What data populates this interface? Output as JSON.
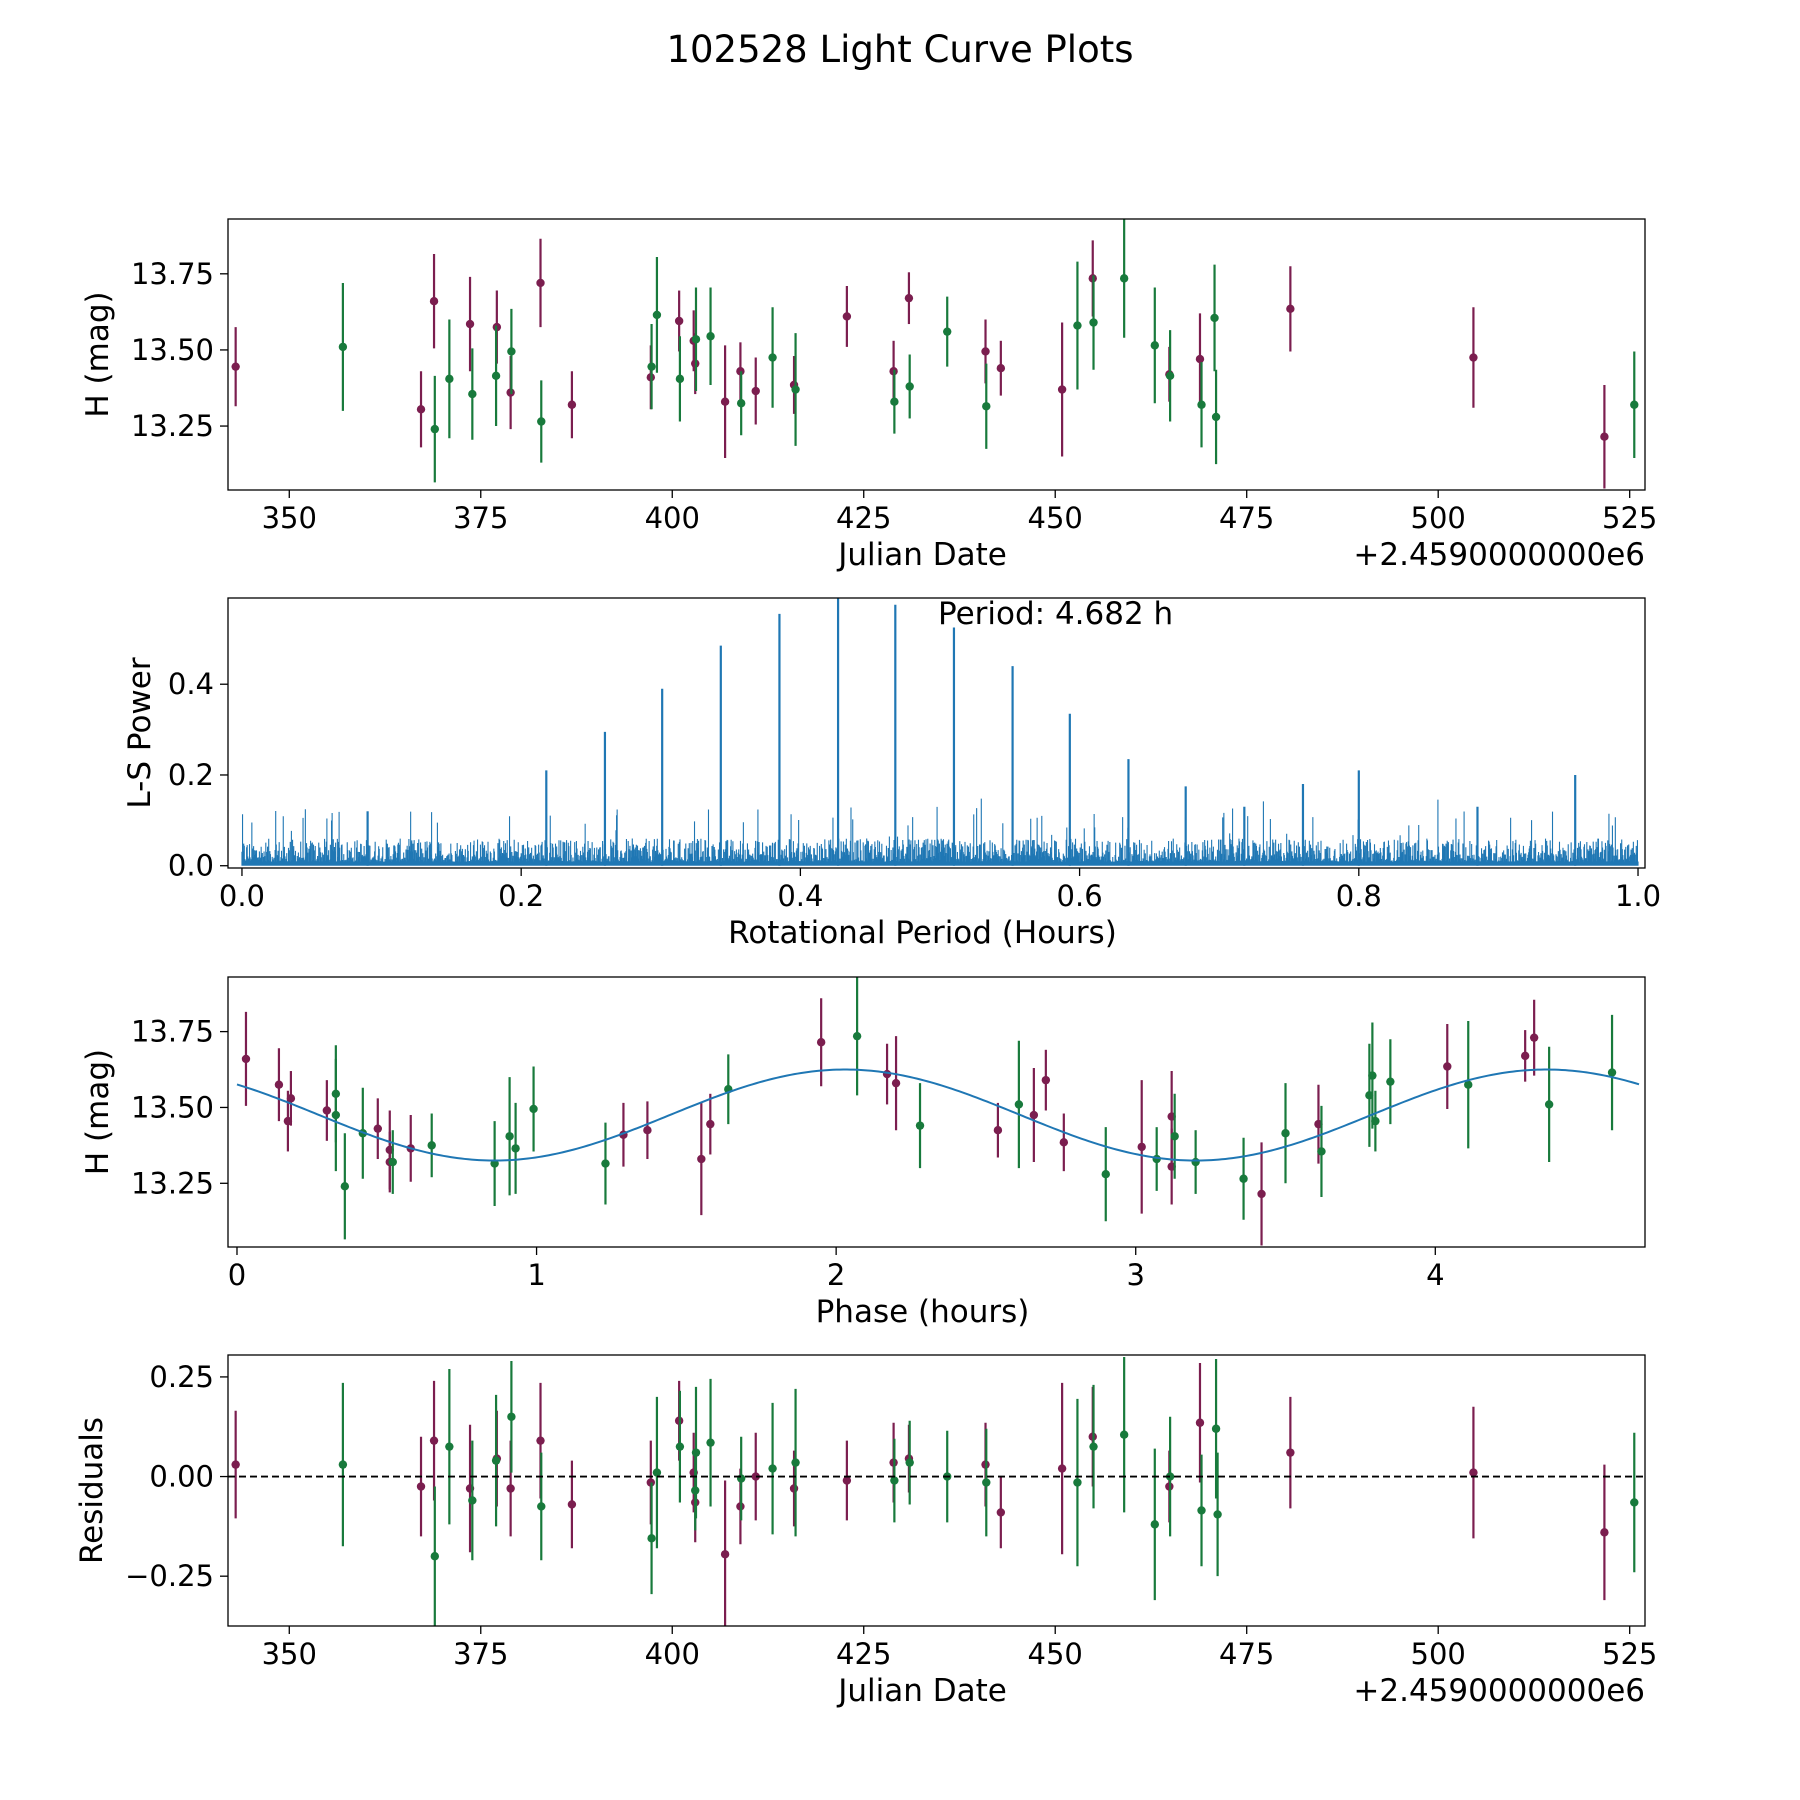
{
  "figure_title": "102528 Light Curve Plots",
  "colors": {
    "red": "#7b1e4f",
    "green": "#187a3c",
    "blue": "#1f77b4"
  },
  "chart_data": [
    {
      "type": "scatter",
      "title": "",
      "xlabel": "Julian Date",
      "ylabel": "H (mag)",
      "x_offset_text": "+2.4590000000e6",
      "xlim": [
        342,
        527
      ],
      "ylim": [
        13.04,
        13.93
      ],
      "xticks": [
        350,
        375,
        400,
        425,
        450,
        475,
        500,
        525
      ],
      "yticks": [
        13.25,
        13.5,
        13.75
      ],
      "ytick_labels": [
        "13.25",
        "13.50",
        "13.75"
      ],
      "series": [
        {
          "name": "red",
          "points": [
            [
              343.0,
              13.445,
              0.13
            ],
            [
              367.2,
              13.305,
              0.125
            ],
            [
              368.9,
              13.66,
              0.155
            ],
            [
              373.6,
              13.585,
              0.155
            ],
            [
              377.1,
              13.575,
              0.12
            ],
            [
              378.9,
              13.36,
              0.12
            ],
            [
              382.8,
              13.72,
              0.145
            ],
            [
              386.9,
              13.32,
              0.11
            ],
            [
              397.2,
              13.41,
              0.105
            ],
            [
              400.9,
              13.595,
              0.1
            ],
            [
              402.8,
              13.53,
              0.1
            ],
            [
              403.0,
              13.455,
              0.1
            ],
            [
              406.9,
              13.33,
              0.185
            ],
            [
              408.9,
              13.43,
              0.095
            ],
            [
              410.9,
              13.365,
              0.11
            ],
            [
              415.9,
              13.385,
              0.095
            ],
            [
              422.8,
              13.61,
              0.1
            ],
            [
              428.9,
              13.43,
              0.1
            ],
            [
              430.9,
              13.67,
              0.085
            ],
            [
              440.9,
              13.495,
              0.105
            ],
            [
              442.9,
              13.44,
              0.09
            ],
            [
              450.9,
              13.37,
              0.22
            ],
            [
              454.9,
              13.735,
              0.125
            ],
            [
              464.9,
              13.42,
              0.09
            ],
            [
              468.9,
              13.47,
              0.15
            ],
            [
              480.7,
              13.635,
              0.14
            ],
            [
              504.6,
              13.475,
              0.165
            ],
            [
              521.7,
              13.215,
              0.17
            ]
          ]
        },
        {
          "name": "green",
          "points": [
            [
              357.0,
              13.51,
              0.21
            ],
            [
              369.0,
              13.24,
              0.175
            ],
            [
              370.9,
              13.405,
              0.195
            ],
            [
              373.9,
              13.355,
              0.15
            ],
            [
              377.0,
              13.415,
              0.165
            ],
            [
              379.0,
              13.495,
              0.14
            ],
            [
              382.9,
              13.265,
              0.135
            ],
            [
              397.3,
              13.445,
              0.14
            ],
            [
              398.0,
              13.615,
              0.19
            ],
            [
              401.0,
              13.405,
              0.14
            ],
            [
              403.1,
              13.535,
              0.17
            ],
            [
              405.0,
              13.545,
              0.16
            ],
            [
              409.0,
              13.325,
              0.105
            ],
            [
              413.1,
              13.475,
              0.165
            ],
            [
              416.1,
              13.37,
              0.185
            ],
            [
              429.0,
              13.33,
              0.105
            ],
            [
              431.0,
              13.38,
              0.105
            ],
            [
              435.9,
              13.56,
              0.115
            ],
            [
              441.0,
              13.315,
              0.14
            ],
            [
              452.9,
              13.58,
              0.21
            ],
            [
              455.0,
              13.59,
              0.155
            ],
            [
              459.0,
              13.735,
              0.195
            ],
            [
              463.0,
              13.515,
              0.19
            ],
            [
              465.0,
              13.415,
              0.15
            ],
            [
              469.1,
              13.32,
              0.14
            ],
            [
              470.8,
              13.605,
              0.175
            ],
            [
              471.0,
              13.28,
              0.155
            ],
            [
              525.6,
              13.32,
              0.175
            ]
          ]
        }
      ]
    },
    {
      "type": "line",
      "title": "",
      "xlabel": "Rotational Period (Hours)",
      "ylabel": "L-S Power",
      "annotation": "Period: 4.682 h",
      "xlim": [
        -0.01,
        1.005
      ],
      "ylim": [
        -0.005,
        0.59
      ],
      "xticks": [
        0.0,
        0.2,
        0.4,
        0.6,
        0.8,
        1.0
      ],
      "xtick_labels": [
        "0.0",
        "0.2",
        "0.4",
        "0.6",
        "0.8",
        "1.0"
      ],
      "yticks": [
        0.0,
        0.2,
        0.4
      ],
      "ytick_labels": [
        "0.0",
        "0.2",
        "0.4"
      ],
      "noise_level": 0.06,
      "peaks": [
        [
          0.09,
          0.12
        ],
        [
          0.218,
          0.21
        ],
        [
          0.26,
          0.295
        ],
        [
          0.301,
          0.39
        ],
        [
          0.343,
          0.485
        ],
        [
          0.385,
          0.555
        ],
        [
          0.427,
          0.59
        ],
        [
          0.468,
          0.575
        ],
        [
          0.51,
          0.525
        ],
        [
          0.552,
          0.44
        ],
        [
          0.593,
          0.335
        ],
        [
          0.635,
          0.235
        ],
        [
          0.676,
          0.175
        ],
        [
          0.718,
          0.13
        ],
        [
          0.76,
          0.18
        ],
        [
          0.8,
          0.21
        ],
        [
          0.885,
          0.13
        ],
        [
          0.955,
          0.2
        ]
      ]
    },
    {
      "type": "scatter",
      "title": "",
      "xlabel": "Phase (hours)",
      "ylabel": "H (mag)",
      "xlim": [
        -0.03,
        4.7
      ],
      "ylim": [
        13.04,
        13.93
      ],
      "xticks": [
        0,
        1,
        2,
        3,
        4
      ],
      "yticks": [
        13.25,
        13.5,
        13.75
      ],
      "ytick_labels": [
        "13.25",
        "13.50",
        "13.75"
      ],
      "fit": {
        "mean": 13.475,
        "amplitude": 0.15,
        "period": 2.341,
        "peak_phase": 2.03
      },
      "series": [
        {
          "name": "red",
          "points": [
            [
              0.03,
              13.66,
              0.155
            ],
            [
              0.14,
              13.575,
              0.12
            ],
            [
              0.17,
              13.455,
              0.1
            ],
            [
              0.18,
              13.53,
              0.09
            ],
            [
              0.3,
              13.49,
              0.1
            ],
            [
              0.47,
              13.43,
              0.1
            ],
            [
              0.51,
              13.32,
              0.1
            ],
            [
              0.58,
              13.365,
              0.11
            ],
            [
              0.51,
              13.36,
              0.13
            ],
            [
              1.29,
              13.41,
              0.105
            ],
            [
              1.37,
              13.425,
              0.095
            ],
            [
              1.55,
              13.33,
              0.185
            ],
            [
              1.58,
              13.445,
              0.1
            ],
            [
              1.95,
              13.715,
              0.145
            ],
            [
              2.17,
              13.61,
              0.1
            ],
            [
              2.2,
              13.58,
              0.155
            ],
            [
              2.54,
              13.425,
              0.09
            ],
            [
              2.66,
              13.475,
              0.155
            ],
            [
              2.7,
              13.59,
              0.1
            ],
            [
              2.76,
              13.385,
              0.095
            ],
            [
              3.02,
              13.37,
              0.22
            ],
            [
              3.12,
              13.47,
              0.15
            ],
            [
              3.12,
              13.305,
              0.125
            ],
            [
              3.42,
              13.215,
              0.17
            ],
            [
              3.61,
              13.445,
              0.13
            ],
            [
              4.04,
              13.635,
              0.14
            ],
            [
              4.3,
              13.67,
              0.085
            ],
            [
              4.33,
              13.73,
              0.125
            ]
          ]
        },
        {
          "name": "green",
          "points": [
            [
              0.33,
              13.545,
              0.16
            ],
            [
              0.33,
              13.475,
              0.185
            ],
            [
              0.36,
              13.24,
              0.175
            ],
            [
              0.42,
              13.415,
              0.15
            ],
            [
              0.52,
              13.32,
              0.105
            ],
            [
              0.65,
              13.375,
              0.105
            ],
            [
              0.86,
              13.315,
              0.14
            ],
            [
              0.91,
              13.405,
              0.195
            ],
            [
              0.93,
              13.365,
              0.15
            ],
            [
              0.99,
              13.495,
              0.14
            ],
            [
              1.23,
              13.315,
              0.135
            ],
            [
              1.64,
              13.56,
              0.115
            ],
            [
              2.07,
              13.735,
              0.195
            ],
            [
              2.28,
              13.44,
              0.14
            ],
            [
              2.61,
              13.51,
              0.21
            ],
            [
              2.9,
              13.28,
              0.155
            ],
            [
              3.07,
              13.33,
              0.105
            ],
            [
              3.13,
              13.405,
              0.14
            ],
            [
              3.2,
              13.32,
              0.105
            ],
            [
              3.36,
              13.265,
              0.135
            ],
            [
              3.5,
              13.415,
              0.165
            ],
            [
              3.62,
              13.355,
              0.15
            ],
            [
              3.78,
              13.54,
              0.17
            ],
            [
              3.79,
              13.605,
              0.175
            ],
            [
              3.8,
              13.455,
              0.1
            ],
            [
              3.85,
              13.585,
              0.14
            ],
            [
              4.11,
              13.575,
              0.21
            ],
            [
              4.38,
              13.51,
              0.19
            ],
            [
              4.59,
              13.615,
              0.19
            ]
          ]
        }
      ]
    },
    {
      "type": "scatter",
      "title": "",
      "xlabel": "Julian Date",
      "ylabel": "Residuals",
      "x_offset_text": "+2.4590000000e6",
      "xlim": [
        342,
        527
      ],
      "ylim": [
        -0.375,
        0.305
      ],
      "xticks": [
        350,
        375,
        400,
        425,
        450,
        475,
        500,
        525
      ],
      "yticks": [
        -0.25,
        0.0,
        0.25
      ],
      "ytick_labels": [
        "−0.25",
        "0.00",
        "0.25"
      ],
      "reference_line": 0.0,
      "series": [
        {
          "name": "red",
          "points": [
            [
              343.0,
              0.03,
              0.135
            ],
            [
              367.2,
              -0.025,
              0.125
            ],
            [
              368.9,
              0.09,
              0.15
            ],
            [
              373.6,
              -0.03,
              0.16
            ],
            [
              377.1,
              0.045,
              0.12
            ],
            [
              378.9,
              -0.03,
              0.12
            ],
            [
              382.8,
              0.09,
              0.145
            ],
            [
              386.9,
              -0.07,
              0.11
            ],
            [
              397.2,
              -0.015,
              0.105
            ],
            [
              400.9,
              0.14,
              0.1
            ],
            [
              402.8,
              0.01,
              0.1
            ],
            [
              403.0,
              -0.065,
              0.1
            ],
            [
              406.9,
              -0.195,
              0.185
            ],
            [
              408.9,
              -0.075,
              0.095
            ],
            [
              410.9,
              0.0,
              0.11
            ],
            [
              415.9,
              -0.03,
              0.095
            ],
            [
              422.8,
              -0.01,
              0.1
            ],
            [
              428.9,
              0.035,
              0.1
            ],
            [
              430.9,
              0.045,
              0.085
            ],
            [
              440.9,
              0.03,
              0.105
            ],
            [
              442.9,
              -0.09,
              0.09
            ],
            [
              450.9,
              0.02,
              0.215
            ],
            [
              454.9,
              0.1,
              0.125
            ],
            [
              464.9,
              -0.025,
              0.09
            ],
            [
              468.9,
              0.135,
              0.15
            ],
            [
              480.7,
              0.06,
              0.14
            ],
            [
              504.6,
              0.01,
              0.165
            ],
            [
              521.7,
              -0.14,
              0.17
            ]
          ]
        },
        {
          "name": "green",
          "points": [
            [
              357.0,
              0.03,
              0.205
            ],
            [
              369.0,
              -0.2,
              0.175
            ],
            [
              370.9,
              0.075,
              0.195
            ],
            [
              373.9,
              -0.06,
              0.15
            ],
            [
              377.0,
              0.04,
              0.165
            ],
            [
              379.0,
              0.15,
              0.14
            ],
            [
              382.9,
              -0.075,
              0.135
            ],
            [
              397.3,
              -0.155,
              0.14
            ],
            [
              398.0,
              0.01,
              0.19
            ],
            [
              401.0,
              0.075,
              0.14
            ],
            [
              403.1,
              0.06,
              0.165
            ],
            [
              403.0,
              -0.035,
              0.1
            ],
            [
              405.0,
              0.085,
              0.16
            ],
            [
              409.0,
              -0.005,
              0.105
            ],
            [
              413.1,
              0.02,
              0.165
            ],
            [
              416.1,
              0.035,
              0.185
            ],
            [
              429.0,
              -0.01,
              0.105
            ],
            [
              431.0,
              0.035,
              0.105
            ],
            [
              435.9,
              0.0,
              0.115
            ],
            [
              441.0,
              -0.015,
              0.135
            ],
            [
              452.9,
              -0.015,
              0.21
            ],
            [
              455.0,
              0.075,
              0.155
            ],
            [
              459.0,
              0.105,
              0.195
            ],
            [
              463.0,
              -0.12,
              0.19
            ],
            [
              465.0,
              0.0,
              0.15
            ],
            [
              469.1,
              -0.085,
              0.14
            ],
            [
              471.0,
              0.12,
              0.175
            ],
            [
              471.2,
              -0.095,
              0.155
            ],
            [
              525.6,
              -0.065,
              0.175
            ]
          ]
        }
      ]
    }
  ]
}
